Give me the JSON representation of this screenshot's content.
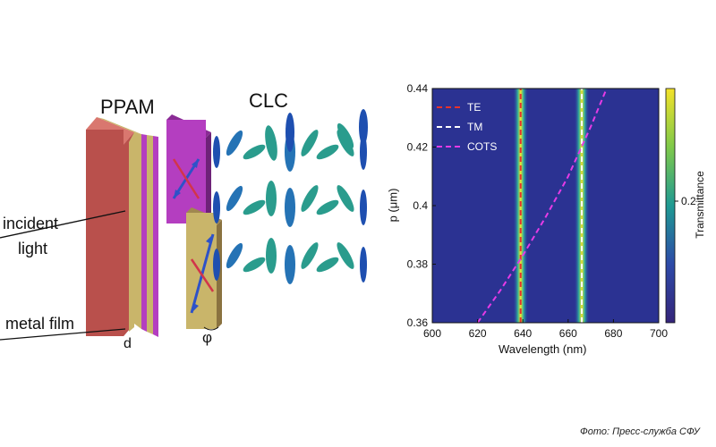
{
  "diagram": {
    "labels": {
      "ppam": "PPAM",
      "clc": "CLC",
      "incident_line1": "incident",
      "incident_line2": "light",
      "metal_film": "metal film",
      "d": "d",
      "phi": "φ"
    },
    "colors": {
      "red_layer": "#b9504c",
      "yellow_layer": "#c9b56a",
      "purple_layer": "#b43ec0",
      "arrow_blue": "#2e52c8",
      "arrow_red": "#d2354a"
    }
  },
  "chart_data": {
    "type": "heatmap",
    "xlabel": "Wavelength (nm)",
    "ylabel": "p (μm)",
    "xlim": [
      600,
      700
    ],
    "ylim": [
      0.36,
      0.44
    ],
    "xticks": [
      "600",
      "620",
      "640",
      "660",
      "680",
      "700"
    ],
    "yticks": [
      "0.36",
      "0.38",
      "0.4",
      "0.42",
      "0.44"
    ],
    "colorbar": {
      "label": "Transmittance",
      "ticks": [
        "0.2"
      ]
    },
    "series": [
      {
        "name": "TE",
        "color": "#e8322a",
        "x": [
          639,
          639
        ],
        "y": [
          0.36,
          0.44
        ]
      },
      {
        "name": "TM",
        "color": "#ffffff",
        "x": [
          666,
          666
        ],
        "y": [
          0.36,
          0.44
        ]
      },
      {
        "name": "COTS",
        "color": "#e63be6",
        "x": [
          620,
          630,
          640,
          650,
          660,
          670,
          677
        ],
        "y": [
          0.36,
          0.371,
          0.383,
          0.396,
          0.41,
          0.427,
          0.44
        ]
      }
    ],
    "bright_bands": [
      {
        "x": 639,
        "y_from": 0.36,
        "y_to": 0.44
      },
      {
        "x": 666,
        "y_from": 0.36,
        "y_to": 0.44
      }
    ]
  },
  "credit": "Фото: Пресс-служба СФУ"
}
